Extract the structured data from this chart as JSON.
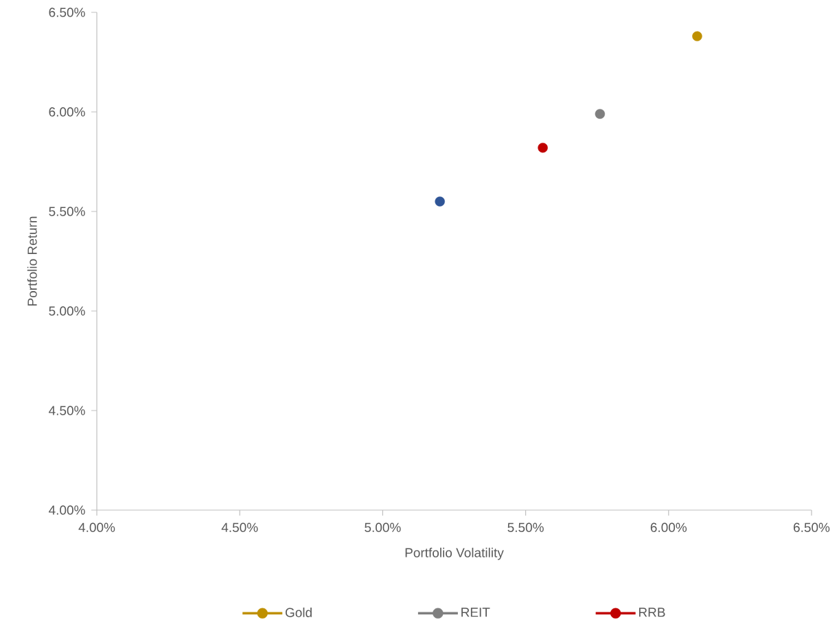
{
  "chart_data": {
    "type": "scatter",
    "xlabel": "Portfolio Volatility",
    "ylabel": "Portfolio Return",
    "series": [
      {
        "name": "Gold",
        "color": "#bf9000",
        "x": [
          6.1
        ],
        "values": [
          6.38
        ]
      },
      {
        "color": "#2f5597",
        "x": [
          5.2
        ],
        "values": [
          5.55
        ]
      },
      {
        "name": "REIT",
        "color": "#7f7f7f",
        "x": [
          5.76
        ],
        "values": [
          5.99
        ]
      },
      {
        "name": "RRB",
        "color": "#c00000",
        "x": [
          5.56
        ],
        "values": [
          5.82
        ]
      }
    ],
    "xlim": [
      4,
      6.5
    ],
    "ylim": [
      4,
      6.5
    ],
    "xticks": [
      {
        "value": 4,
        "label": "4.00%"
      },
      {
        "value": 4.5,
        "label": "4.50%"
      },
      {
        "value": 5,
        "label": "5.00%"
      },
      {
        "value": 5.5,
        "label": "5.50%"
      },
      {
        "value": 6,
        "label": "6.00%"
      },
      {
        "value": 6.5,
        "label": "6.50%"
      }
    ],
    "yticks": [
      {
        "value": 4,
        "label": "4.00%"
      },
      {
        "value": 4.5,
        "label": "4.50%"
      },
      {
        "value": 5,
        "label": "5.00%"
      },
      {
        "value": 5.5,
        "label": "5.50%"
      },
      {
        "value": 6,
        "label": "6.00%"
      },
      {
        "value": 6.5,
        "label": "6.50%"
      }
    ],
    "grid": false,
    "legend": "bottom",
    "marker": "circle"
  }
}
